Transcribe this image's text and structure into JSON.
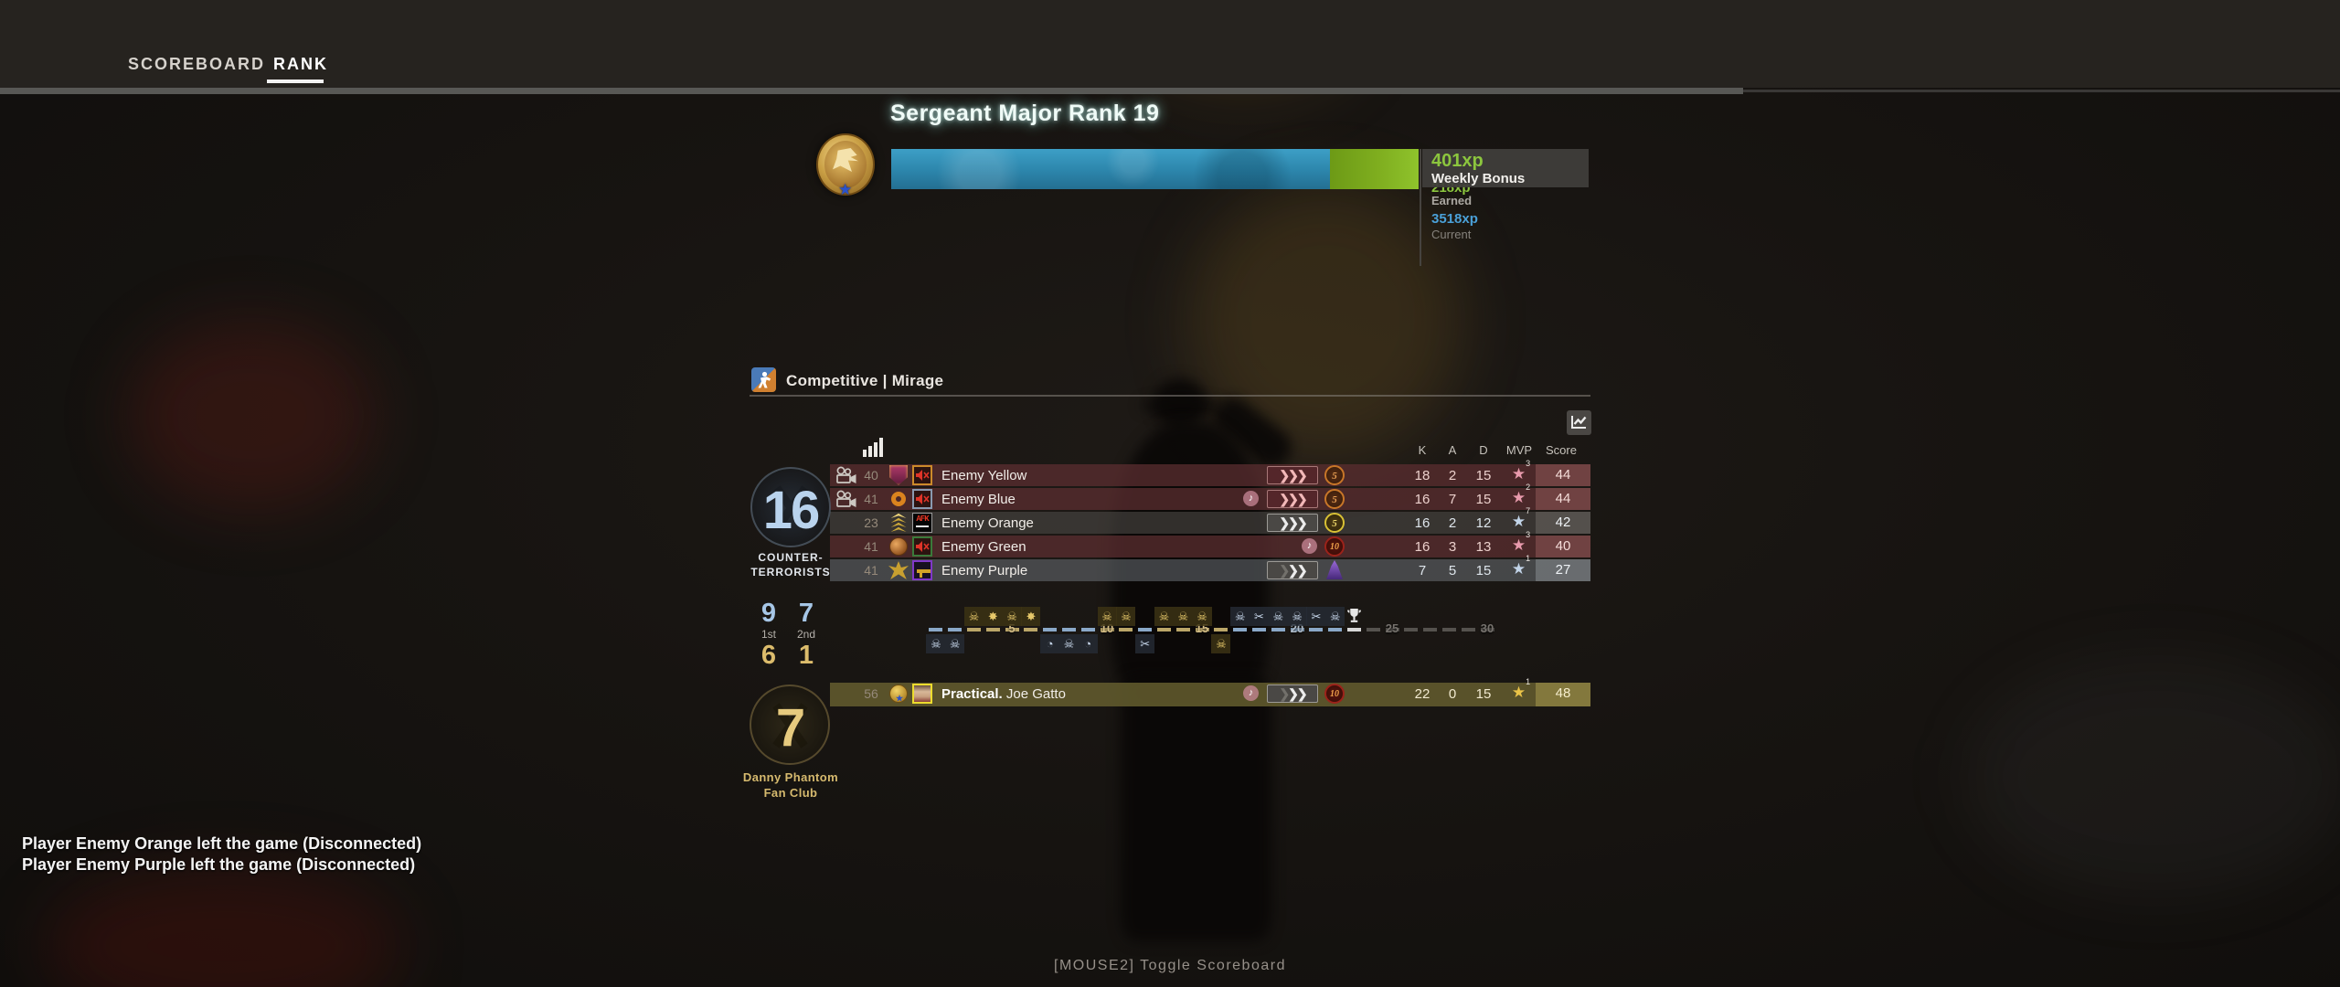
{
  "colors": {
    "accent_green": "#8cc63e",
    "xp_current_blue": "#4aa0d8",
    "xp_bar_blue": "#2e8ab0",
    "xp_bar_green": "#84b81e",
    "ct_blue": "#b9d3ed",
    "t_gold": "#e6ca7e",
    "enemy_row": "#5c2e30",
    "disconnected_row": "#4a4743",
    "player_row": "#625b2e"
  },
  "tabs": [
    {
      "label": "SCOREBOARD",
      "active": false
    },
    {
      "label": "RANK",
      "active": true
    }
  ],
  "rank": {
    "title": "Sergeant Major Rank 19",
    "progress_pct": 83,
    "weekly_bonus_xp": "401xp",
    "weekly_bonus_label": "Weekly Bonus",
    "earned_xp": "218xp",
    "earned_label": "Earned",
    "current_xp": "3518xp",
    "current_label": "Current"
  },
  "match": {
    "mode_map": "Competitive | Mirage"
  },
  "scoreboard": {
    "headers": [
      "K",
      "A",
      "D",
      "MVP",
      "Score"
    ],
    "ct_team": {
      "score": "16",
      "name_line1": "COUNTER-",
      "name_line2": "TERRORISTS"
    },
    "t_team": {
      "score": "7",
      "name_line1": "Danny Phantom",
      "name_line2": "Fan Club"
    },
    "halves": {
      "first_label": "1st",
      "second_label": "2nd",
      "ct_first": "9",
      "ct_second": "7",
      "t_first": "6",
      "t_second": "1"
    },
    "rows": [
      {
        "level": "40",
        "name": "Enemy Yellow",
        "k": "18",
        "a": "2",
        "d": "15",
        "mvps": "3",
        "score": "44",
        "team": "enemy",
        "camera": true,
        "music": false,
        "music_pos": "far",
        "badge": "shield",
        "avatar": "muted",
        "avatar_border": "b-yellow",
        "skill": "pink3",
        "coin": "c5b",
        "star_color": "#e89aac"
      },
      {
        "level": "41",
        "name": "Enemy Blue",
        "k": "16",
        "a": "7",
        "d": "15",
        "mvps": "2",
        "score": "44",
        "team": "enemy",
        "camera": true,
        "music": true,
        "music_pos": "far",
        "badge": "ring",
        "avatar": "muted",
        "avatar_border": "b-gray",
        "skill": "pink3",
        "coin": "c5b",
        "star_color": "#e89aac"
      },
      {
        "level": "23",
        "name": "Enemy Orange",
        "k": "16",
        "a": "2",
        "d": "12",
        "mvps": "7",
        "score": "42",
        "team": "disc",
        "camera": false,
        "music": false,
        "music_pos": "far",
        "badge": "chevrons",
        "avatar": "afk",
        "avatar_border": "",
        "skill": "silver3",
        "coin": "c5g",
        "star_color": "#c2d4e8"
      },
      {
        "level": "41",
        "name": "Enemy Green",
        "k": "16",
        "a": "3",
        "d": "13",
        "mvps": "3",
        "score": "40",
        "team": "enemy",
        "camera": false,
        "music": true,
        "music_pos": "near",
        "badge": "coinb",
        "avatar": "muted",
        "avatar_border": "b-green",
        "skill": "none",
        "coin": "c10r",
        "star_color": "#e89aac"
      },
      {
        "level": "41",
        "name": "Enemy Purple",
        "k": "7",
        "a": "5",
        "d": "15",
        "mvps": "1",
        "score": "27",
        "team": "purple",
        "camera": false,
        "music": false,
        "music_pos": "far",
        "badge": "wings",
        "avatar": "gun",
        "avatar_border": "b-purple",
        "skill": "silver-faded",
        "coin": "wizard",
        "star_color": "#c2d4e8"
      }
    ],
    "player_row": {
      "level": "56",
      "clan": "Practical.",
      "name": "Joe Gatto",
      "k": "22",
      "a": "0",
      "d": "15",
      "mvps": "1",
      "score": "48",
      "team": "player",
      "camera": false,
      "music": true,
      "music_pos": "far",
      "badge": "medal",
      "avatar": "photo",
      "avatar_border": "b-player",
      "skill": "silver-faded",
      "coin": "c10r",
      "star_color": "#eac348"
    },
    "avatar_afk_text": "AFK",
    "music_note": "♪"
  },
  "timeline": {
    "total_rounds": 30,
    "axis_labels": [
      {
        "n": 5,
        "label": "5"
      },
      {
        "n": 10,
        "label": "10"
      },
      {
        "n": 15,
        "label": "15"
      },
      {
        "n": 20,
        "label": "20"
      },
      {
        "n": 25,
        "label": "25"
      },
      {
        "n": 30,
        "label": "30"
      }
    ],
    "rounds": [
      {
        "n": 1,
        "winner": "player",
        "side": "ct",
        "icon": "skull"
      },
      {
        "n": 2,
        "winner": "player",
        "side": "ct",
        "icon": "skull"
      },
      {
        "n": 3,
        "winner": "enemy",
        "side": "t",
        "icon": "skull"
      },
      {
        "n": 4,
        "winner": "enemy",
        "side": "t",
        "icon": "explosion"
      },
      {
        "n": 5,
        "winner": "enemy",
        "side": "t",
        "icon": "skull"
      },
      {
        "n": 6,
        "winner": "enemy",
        "side": "t",
        "icon": "explosion"
      },
      {
        "n": 7,
        "winner": "player",
        "side": "ct",
        "icon": "timer"
      },
      {
        "n": 8,
        "winner": "player",
        "side": "ct",
        "icon": "skull"
      },
      {
        "n": 9,
        "winner": "player",
        "side": "ct",
        "icon": "timer"
      },
      {
        "n": 10,
        "winner": "enemy",
        "side": "t",
        "icon": "skull"
      },
      {
        "n": 11,
        "winner": "enemy",
        "side": "t",
        "icon": "skull"
      },
      {
        "n": 12,
        "winner": "player",
        "side": "ct",
        "icon": "defuse"
      },
      {
        "n": 13,
        "winner": "enemy",
        "side": "t",
        "icon": "skull"
      },
      {
        "n": 14,
        "winner": "enemy",
        "side": "t",
        "icon": "skull"
      },
      {
        "n": 15,
        "winner": "enemy",
        "side": "t",
        "icon": "skull"
      },
      {
        "n": 16,
        "winner": "player",
        "side": "t",
        "icon": "skull"
      },
      {
        "n": 17,
        "winner": "enemy",
        "side": "ct",
        "icon": "skull"
      },
      {
        "n": 18,
        "winner": "enemy",
        "side": "ct",
        "icon": "defuse"
      },
      {
        "n": 19,
        "winner": "enemy",
        "side": "ct",
        "icon": "skull"
      },
      {
        "n": 20,
        "winner": "enemy",
        "side": "ct",
        "icon": "skull"
      },
      {
        "n": 21,
        "winner": "enemy",
        "side": "ct",
        "icon": "defuse"
      },
      {
        "n": 22,
        "winner": "enemy",
        "side": "ct",
        "icon": "skull"
      },
      {
        "n": 23,
        "winner": "enemy",
        "side": "ct",
        "icon": "trophy"
      }
    ]
  },
  "messages": [
    "Player Enemy Orange left the game (Disconnected)",
    "Player Enemy Purple left the game (Disconnected)"
  ],
  "footer_hint": "[MOUSE2] Toggle Scoreboard"
}
